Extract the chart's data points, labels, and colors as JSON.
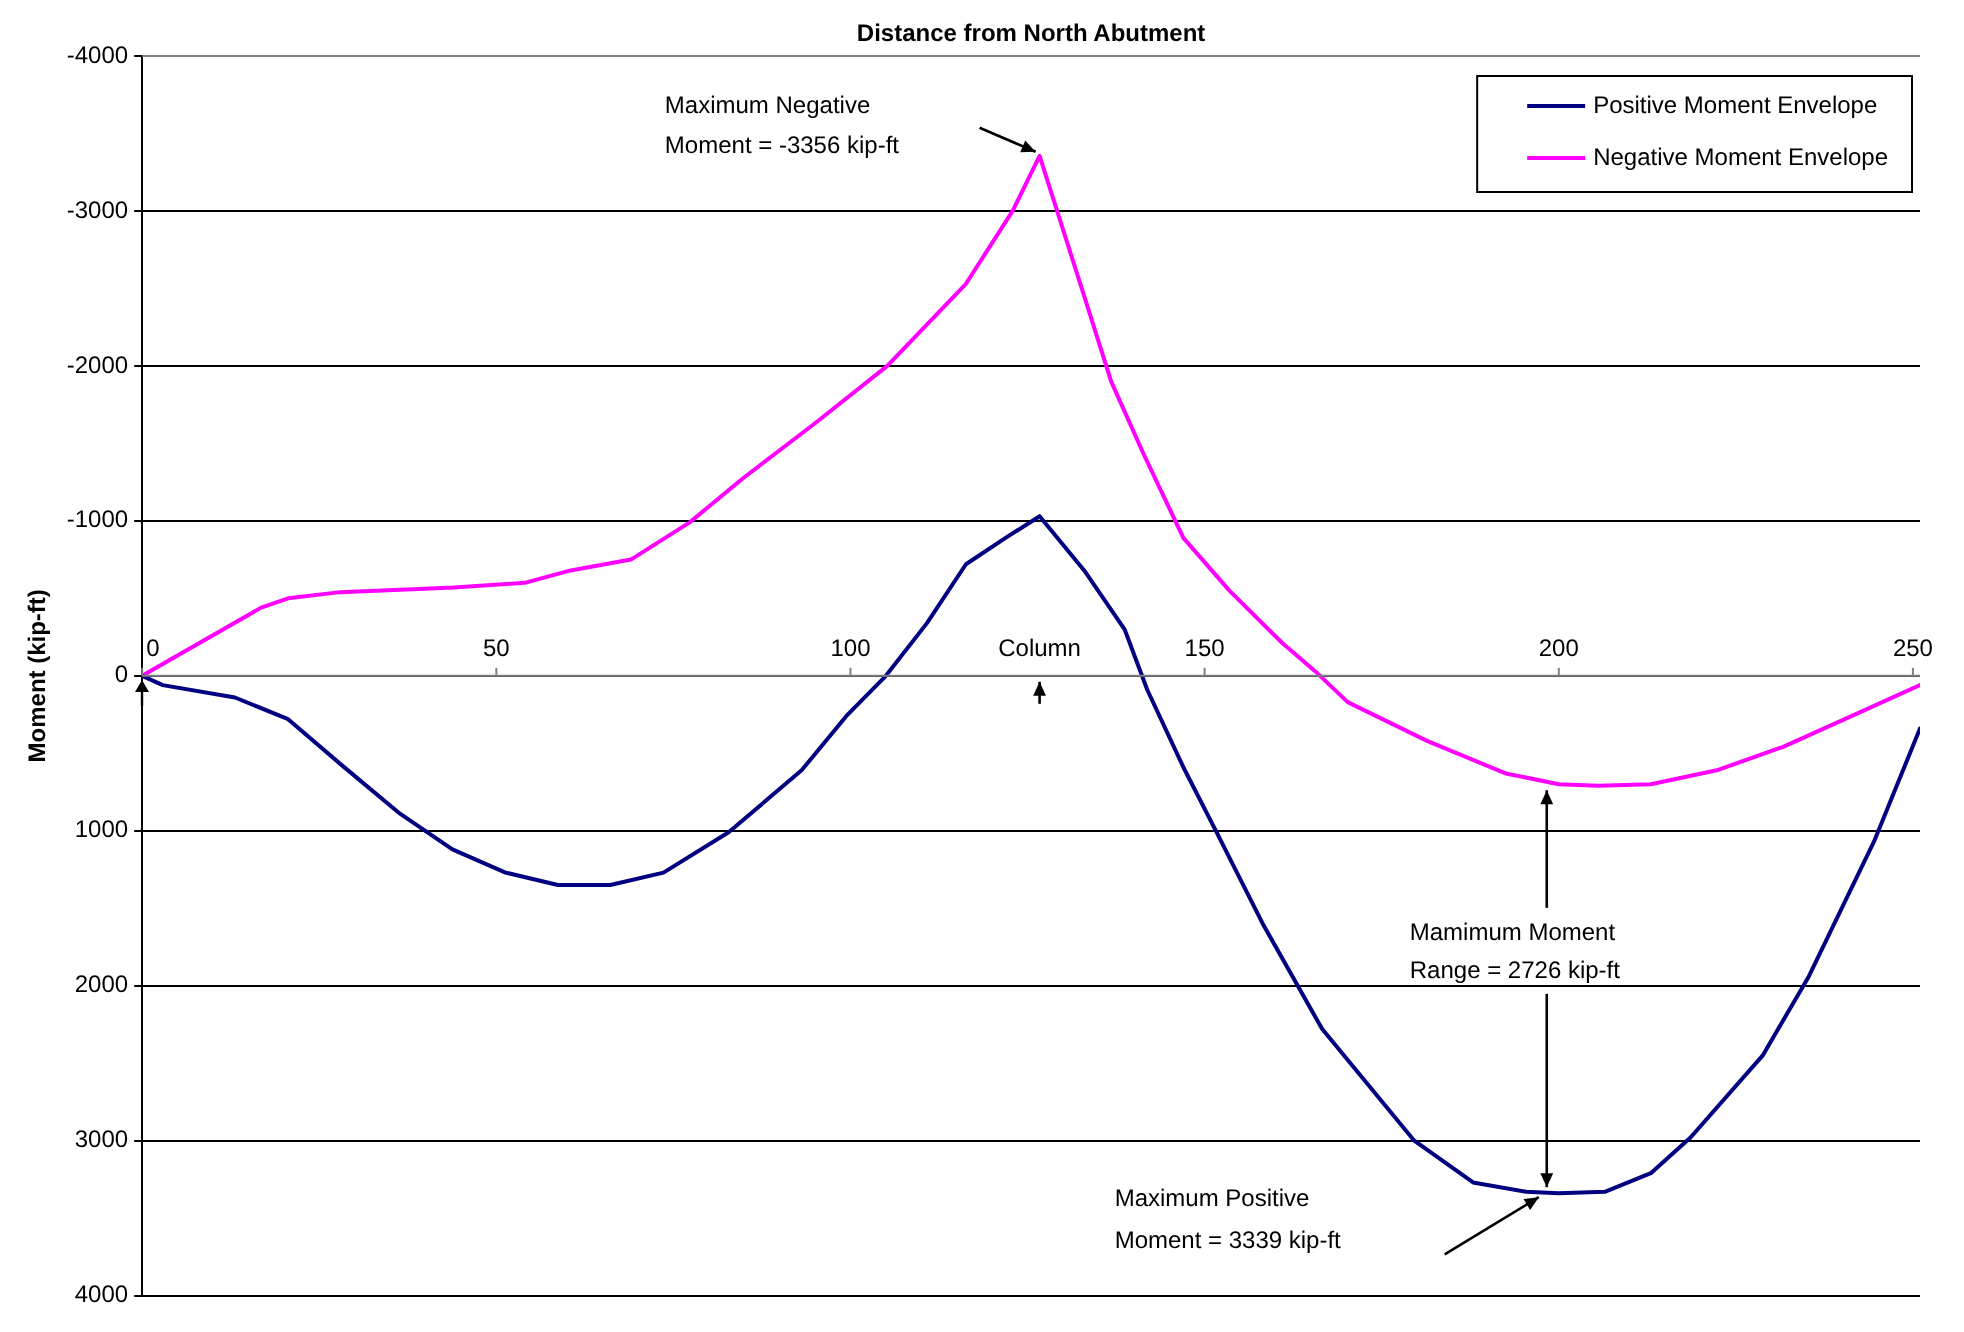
{
  "chart_data": {
    "type": "line",
    "xlabel": "Distance from North Abutment",
    "ylabel": "Moment (kip-ft)",
    "xlim": [
      0,
      251
    ],
    "xticks": [
      0,
      50,
      100,
      150,
      200,
      250
    ],
    "ylim": [
      4000,
      -4000
    ],
    "yticks": [
      -4000,
      -3000,
      -2000,
      -1000,
      0,
      1000,
      2000,
      3000,
      4000
    ],
    "grid": "y",
    "legend": "top right",
    "marker": "none",
    "line_style": "solid",
    "series": [
      {
        "name": "Positive Moment Envelope",
        "color": "#000080",
        "x": [
          0,
          2.9,
          13.1,
          20.6,
          28,
          36.4,
          43.8,
          51.3,
          58.7,
          66.1,
          73.6,
          82.8,
          93.1,
          99.6,
          105,
          110.8,
          116.3,
          121.9,
          126.7,
          133,
          138.7,
          141.9,
          147,
          151.7,
          158.2,
          166.6,
          179.6,
          187.9,
          195.4,
          200,
          206.5,
          213,
          218.6,
          228.8,
          235.3,
          244.6,
          251
        ],
        "values": [
          0,
          60,
          140,
          280,
          570,
          890,
          1120,
          1270,
          1350,
          1350,
          1270,
          1010,
          610,
          250,
          0,
          -340,
          -720,
          -890,
          -1030,
          -680,
          -300,
          90,
          590,
          1010,
          1600,
          2280,
          3000,
          3270,
          3330,
          3339,
          3330,
          3210,
          2980,
          2450,
          1940,
          1060,
          340
        ]
      },
      {
        "name": "Negative Moment Envelope",
        "color": "#ff00ff",
        "x": [
          0,
          16.8,
          20.6,
          28,
          44,
          54,
          60.5,
          69,
          77.3,
          84.7,
          95,
          105.2,
          116.3,
          122.9,
          126.7,
          133,
          136.8,
          141.4,
          147,
          153.5,
          161,
          165.6,
          170.2,
          181.4,
          192.5,
          200,
          205.6,
          213,
          222.3,
          231.6,
          242.8,
          251
        ],
        "values": [
          0,
          -440,
          -500,
          -540,
          -570,
          -600,
          -680,
          -750,
          -990,
          -1270,
          -1630,
          -2000,
          -2530,
          -3000,
          -3356,
          -2450,
          -1900,
          -1430,
          -890,
          -550,
          -210,
          -30,
          170,
          420,
          630,
          700,
          710,
          700,
          610,
          460,
          230,
          60
        ]
      }
    ],
    "annotations": [
      "Maximum Negative\nMoment = -3356 kip-ft",
      {
        "text": "Mamimum Moment\nRange = 2726 kip-ft",
        "x": 200,
        "y": 700
      },
      "Maximum Positive\nMoment = 3339 kip-ft",
      "Column"
    ]
  }
}
